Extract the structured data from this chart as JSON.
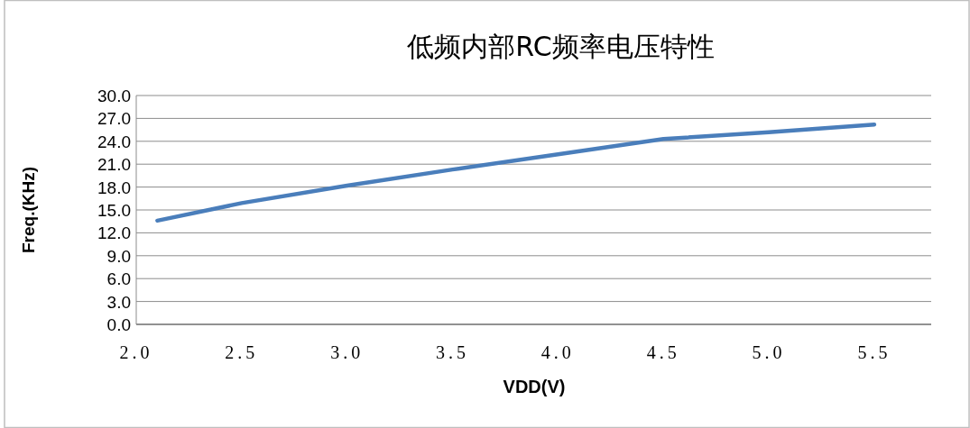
{
  "chart_data": {
    "type": "line",
    "title": "低频内部RC频率电压特性",
    "xlabel": "VDD(V)",
    "ylabel": "Freq.(KHz)",
    "x": [
      2.1,
      2.5,
      3.0,
      3.5,
      4.0,
      4.5,
      5.0,
      5.5
    ],
    "series": [
      {
        "color": "#4a7ebb",
        "values": [
          13.6,
          15.9,
          18.2,
          20.3,
          22.3,
          24.3,
          25.2,
          26.2
        ]
      }
    ],
    "xlim": [
      2.0,
      5.77
    ],
    "ylim": [
      0,
      30
    ],
    "xticks": [
      {
        "value": 2,
        "label": "2.0"
      },
      {
        "value": 2.5,
        "label": "2.5"
      },
      {
        "value": 3,
        "label": "3.0"
      },
      {
        "value": 3.5,
        "label": "3.5"
      },
      {
        "value": 4,
        "label": "4.0"
      },
      {
        "value": 4.5,
        "label": "4.5"
      },
      {
        "value": 5,
        "label": "5.0"
      },
      {
        "value": 5.5,
        "label": "5.5"
      }
    ],
    "yticks": [
      {
        "value": 0,
        "label": "0.0"
      },
      {
        "value": 3,
        "label": "3.0"
      },
      {
        "value": 6,
        "label": "6.0"
      },
      {
        "value": 9,
        "label": "9.0"
      },
      {
        "value": 12,
        "label": "12.0"
      },
      {
        "value": 15,
        "label": "15.0"
      },
      {
        "value": 18,
        "label": "18.0"
      },
      {
        "value": 21,
        "label": "21.0"
      },
      {
        "value": 24,
        "label": "24.0"
      },
      {
        "value": 27,
        "label": "27.0"
      },
      {
        "value": 30,
        "label": "30.0"
      }
    ],
    "grid": "y",
    "marker": "none",
    "line_style": "solid"
  }
}
